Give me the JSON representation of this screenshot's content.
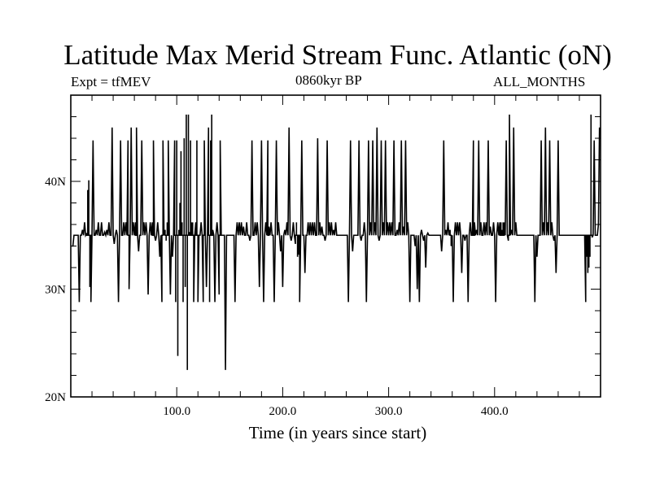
{
  "chart_data": {
    "type": "line",
    "title": "Latitude Max Merid Stream Func. Atlantic (oN)",
    "subtitle_left": "Expt = tfMEV",
    "subtitle_center": "0860kyr BP",
    "subtitle_right": "ALL_MONTHS",
    "xlabel": "Time (in years since start)",
    "ylabel": "",
    "xlim": [
      0,
      500
    ],
    "ylim": [
      20,
      48
    ],
    "x_ticks": [
      {
        "value": 100,
        "label": "100.0"
      },
      {
        "value": 200,
        "label": "200.0"
      },
      {
        "value": 300,
        "label": "300.0"
      },
      {
        "value": 400,
        "label": "400.0"
      }
    ],
    "y_ticks": [
      {
        "value": 20,
        "label": "20N"
      },
      {
        "value": 30,
        "label": "30N"
      },
      {
        "value": 40,
        "label": "40N"
      }
    ],
    "grid": false,
    "series": [
      {
        "color": "#000000",
        "baseline": 35,
        "x_start": 1,
        "x_end": 499,
        "start_values": [
          34,
          34,
          35,
          35,
          35
        ],
        "end_values": [
          35,
          36,
          45
        ],
        "spikes": [
          [
            8,
            28.8
          ],
          [
            11,
            35.5
          ],
          [
            13,
            36.2
          ],
          [
            15,
            35.2
          ],
          [
            16,
            39.2
          ],
          [
            17,
            40.1
          ],
          [
            18,
            30.2
          ],
          [
            19,
            28.8
          ],
          [
            21,
            43.8
          ],
          [
            24,
            35.5
          ],
          [
            26,
            36.2
          ],
          [
            29,
            36.2
          ],
          [
            32,
            35.3
          ],
          [
            34,
            35.5
          ],
          [
            36,
            36.2
          ],
          [
            39,
            45
          ],
          [
            41,
            34.2
          ],
          [
            43,
            35.5
          ],
          [
            45,
            28.8
          ],
          [
            47,
            43.8
          ],
          [
            50,
            36.2
          ],
          [
            52,
            36.2
          ],
          [
            54,
            43.8
          ],
          [
            55,
            30
          ],
          [
            57,
            45
          ],
          [
            59,
            36.2
          ],
          [
            61,
            36.2
          ],
          [
            62,
            45
          ],
          [
            64,
            33.5
          ],
          [
            67,
            43.8
          ],
          [
            69,
            36.2
          ],
          [
            71,
            36.2
          ],
          [
            73,
            29.5
          ],
          [
            75,
            36.2
          ],
          [
            77,
            36.2
          ],
          [
            78,
            43.8
          ],
          [
            80,
            34.5
          ],
          [
            82,
            36.2
          ],
          [
            84,
            33
          ],
          [
            86,
            28.8
          ],
          [
            87,
            43.8
          ],
          [
            89,
            35.5
          ],
          [
            90,
            34.5
          ],
          [
            91,
            36.2
          ],
          [
            92,
            43.8
          ],
          [
            94,
            29.5
          ],
          [
            96,
            33
          ],
          [
            98,
            43.8
          ],
          [
            99,
            28.8
          ],
          [
            100,
            43.8
          ],
          [
            101,
            23.8
          ],
          [
            102,
            35.5
          ],
          [
            103,
            38
          ],
          [
            104,
            42.8
          ],
          [
            105,
            36.2
          ],
          [
            106,
            28.8
          ],
          [
            107,
            44
          ],
          [
            108,
            30.2
          ],
          [
            109,
            46.2
          ],
          [
            110,
            22.5
          ],
          [
            111,
            46.2
          ],
          [
            112,
            35.3
          ],
          [
            113,
            43.8
          ],
          [
            114,
            36.2
          ],
          [
            115,
            36.2
          ],
          [
            116,
            28.8
          ],
          [
            118,
            36.2
          ],
          [
            119,
            43.8
          ],
          [
            120,
            28.8
          ],
          [
            123,
            36.2
          ],
          [
            125,
            28.8
          ],
          [
            126,
            43.8
          ],
          [
            128,
            30.2
          ],
          [
            130,
            45
          ],
          [
            131,
            28.8
          ],
          [
            132,
            43.8
          ],
          [
            133,
            46.2
          ],
          [
            134,
            35.5
          ],
          [
            136,
            28.8
          ],
          [
            138,
            36.2
          ],
          [
            140,
            29.5
          ],
          [
            141,
            43.8
          ],
          [
            146,
            22.5
          ],
          [
            155,
            28.8
          ],
          [
            157,
            36.2
          ],
          [
            159,
            36.2
          ],
          [
            161,
            36.2
          ],
          [
            163,
            35.8
          ],
          [
            166,
            36.2
          ],
          [
            169,
            34.5
          ],
          [
            171,
            43.8
          ],
          [
            174,
            36.2
          ],
          [
            176,
            36.2
          ],
          [
            178,
            30.2
          ],
          [
            180,
            43.8
          ],
          [
            182,
            28.8
          ],
          [
            184,
            36.2
          ],
          [
            186,
            43.8
          ],
          [
            187,
            35.8
          ],
          [
            189,
            36.2
          ],
          [
            192,
            28.8
          ],
          [
            194,
            43.8
          ],
          [
            196,
            36.2
          ],
          [
            198,
            33.5
          ],
          [
            200,
            30.2
          ],
          [
            202,
            35.5
          ],
          [
            204,
            36.2
          ],
          [
            206,
            45
          ],
          [
            208,
            34.5
          ],
          [
            210,
            36.2
          ],
          [
            212,
            34.2
          ],
          [
            213,
            36.2
          ],
          [
            214,
            33
          ],
          [
            215,
            33.2
          ],
          [
            216,
            28.8
          ],
          [
            218,
            43.8
          ],
          [
            221,
            31.5
          ],
          [
            224,
            36.2
          ],
          [
            226,
            36.2
          ],
          [
            228,
            36.2
          ],
          [
            230,
            36.2
          ],
          [
            233,
            44
          ],
          [
            235,
            36.2
          ],
          [
            237,
            35.8
          ],
          [
            240,
            34.5
          ],
          [
            242,
            43.8
          ],
          [
            244,
            36.2
          ],
          [
            246,
            36.2
          ],
          [
            248,
            35.5
          ],
          [
            250,
            36.2
          ],
          [
            262,
            28.8
          ],
          [
            264,
            43.8
          ],
          [
            266,
            33.5
          ],
          [
            272,
            43.8
          ],
          [
            274,
            34.5
          ],
          [
            277,
            36.2
          ],
          [
            279,
            28.8
          ],
          [
            281,
            43.8
          ],
          [
            283,
            36.2
          ],
          [
            285,
            43.8
          ],
          [
            287,
            36.2
          ],
          [
            289,
            45
          ],
          [
            291,
            34.5
          ],
          [
            293,
            43.8
          ],
          [
            295,
            36.2
          ],
          [
            297,
            43.8
          ],
          [
            299,
            36.2
          ],
          [
            301,
            36.2
          ],
          [
            303,
            36.2
          ],
          [
            305,
            43.8
          ],
          [
            308,
            35.5
          ],
          [
            310,
            36.2
          ],
          [
            312,
            43.8
          ],
          [
            314,
            35.8
          ],
          [
            316,
            43.8
          ],
          [
            318,
            36.2
          ],
          [
            320,
            28.8
          ],
          [
            325,
            34
          ],
          [
            327,
            30
          ],
          [
            329,
            28.8
          ],
          [
            331,
            35.5
          ],
          [
            333,
            34.5
          ],
          [
            335,
            32
          ],
          [
            337,
            35.2
          ],
          [
            350,
            33.5
          ],
          [
            352,
            43.8
          ],
          [
            354,
            35.5
          ],
          [
            356,
            36.2
          ],
          [
            358,
            35.5
          ],
          [
            359,
            34
          ],
          [
            361,
            28.8
          ],
          [
            363,
            36.2
          ],
          [
            365,
            36.2
          ],
          [
            367,
            36.2
          ],
          [
            369,
            31.5
          ],
          [
            372,
            34.5
          ],
          [
            375,
            28.8
          ],
          [
            377,
            36.2
          ],
          [
            380,
            43.8
          ],
          [
            381,
            36.2
          ],
          [
            383,
            35.5
          ],
          [
            385,
            43.8
          ],
          [
            387,
            36.2
          ],
          [
            390,
            36.2
          ],
          [
            392,
            36.2
          ],
          [
            394,
            43.8
          ],
          [
            396,
            35.8
          ],
          [
            399,
            36.2
          ],
          [
            401,
            28.8
          ],
          [
            403,
            36.2
          ],
          [
            405,
            36.2
          ],
          [
            406,
            36.2
          ],
          [
            407,
            35.5
          ],
          [
            408,
            36.2
          ],
          [
            409,
            36.2
          ],
          [
            411,
            43.8
          ],
          [
            413,
            34.5
          ],
          [
            414,
            46.2
          ],
          [
            416,
            35.5
          ],
          [
            418,
            45
          ],
          [
            420,
            36.2
          ],
          [
            438,
            28.8
          ],
          [
            440,
            33
          ],
          [
            444,
            43.8
          ],
          [
            446,
            36.2
          ],
          [
            448,
            45
          ],
          [
            450,
            36.2
          ],
          [
            452,
            43.8
          ],
          [
            454,
            36.2
          ],
          [
            456,
            34.5
          ],
          [
            458,
            31.5
          ],
          [
            460,
            43.8
          ],
          [
            486,
            28.8
          ],
          [
            487,
            33
          ],
          [
            488,
            31.5
          ],
          [
            489,
            32
          ],
          [
            490,
            33
          ],
          [
            491,
            46.2
          ],
          [
            492,
            34.8
          ],
          [
            494,
            43.8
          ]
        ]
      }
    ]
  }
}
